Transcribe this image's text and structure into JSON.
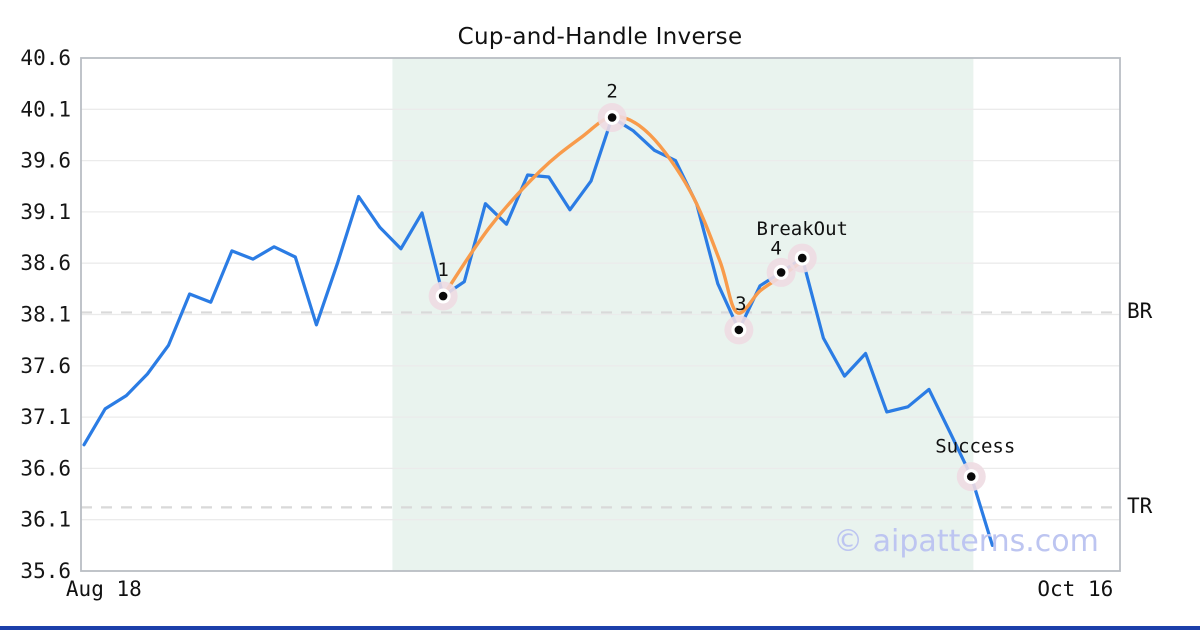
{
  "page": {
    "watermark": "© aipatterns.com"
  },
  "chart_data": {
    "type": "line",
    "title": "Cup-and-Handle Inverse",
    "grid": true,
    "x_axis": {
      "ticks": [
        {
          "label": "Aug 18",
          "pos_frac": 0.022
        },
        {
          "label": "Oct 16",
          "pos_frac": 0.957
        }
      ]
    },
    "y_axis": {
      "min": 35.6,
      "max": 40.6,
      "ticks": [
        40.6,
        40.1,
        39.6,
        39.1,
        38.6,
        38.1,
        37.6,
        37.1,
        36.6,
        36.1,
        35.6
      ]
    },
    "series": {
      "name": "price",
      "color": "#2b7ce4",
      "values": [
        36.83,
        37.18,
        37.31,
        37.52,
        37.8,
        38.3,
        38.22,
        38.72,
        38.64,
        38.76,
        38.66,
        38.0,
        38.6,
        39.25,
        38.95,
        38.74,
        39.09,
        38.28,
        38.42,
        39.18,
        38.98,
        39.46,
        39.44,
        39.12,
        39.4,
        40.02,
        39.89,
        39.7,
        39.6,
        39.18,
        38.4,
        37.95,
        38.38,
        38.51,
        38.65,
        37.87,
        37.5,
        37.72,
        37.15,
        37.2,
        37.37,
        36.95,
        36.52,
        35.85
      ]
    },
    "smooth_curve": {
      "name": "pattern-outline",
      "color": "#f89b4b",
      "points": [
        [
          17.0,
          38.28
        ],
        [
          19.2,
          38.95
        ],
        [
          21.6,
          39.5
        ],
        [
          23.5,
          39.82
        ],
        [
          25.1,
          40.03
        ],
        [
          26.8,
          39.85
        ],
        [
          28.7,
          39.3
        ],
        [
          30.1,
          38.62
        ],
        [
          30.9,
          38.12
        ],
        [
          32.0,
          38.33
        ],
        [
          33.0,
          38.47
        ],
        [
          34.2,
          38.65
        ]
      ]
    },
    "levels": [
      {
        "label": "BR",
        "value": 38.12
      },
      {
        "label": "TR",
        "value": 36.22
      }
    ],
    "markers": [
      {
        "label": "1",
        "index": 17,
        "value": 38.28
      },
      {
        "label": "2",
        "index": 25,
        "value": 40.02
      },
      {
        "label": "3",
        "index": 31,
        "value": 37.95
      },
      {
        "label": "4",
        "index": 33,
        "value": 38.51
      },
      {
        "label": "BreakOut",
        "index": 34,
        "value": 38.65
      },
      {
        "label": "Success",
        "index": 42,
        "value": 36.52
      }
    ],
    "pattern_band": {
      "from_index": 14.6,
      "to_index": 42.1,
      "color": "#e9f3ee"
    },
    "colors": {
      "grid": "#ebebeb",
      "border": "#b9bec4",
      "dashed_level": "#d9d9d9",
      "marker_halo": "#eedbe2",
      "marker_dot": "#0a0a0a",
      "tick_text": "#151515"
    }
  }
}
